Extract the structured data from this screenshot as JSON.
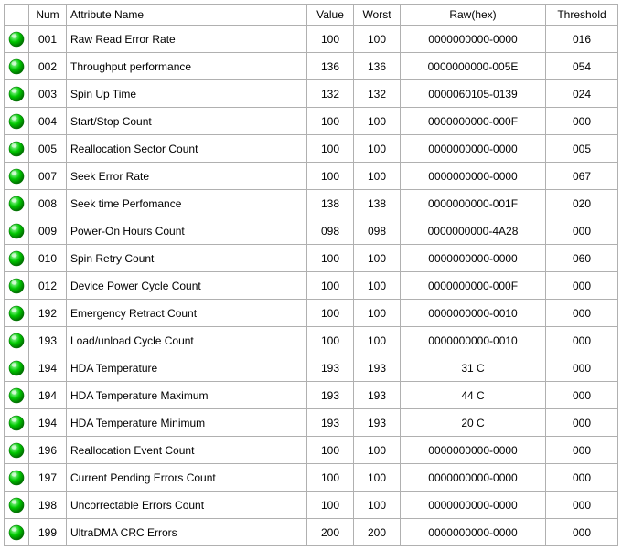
{
  "table": {
    "columns": {
      "status": "",
      "num": "Num",
      "name": "Attribute Name",
      "value": "Value",
      "worst": "Worst",
      "raw": "Raw(hex)",
      "threshold": "Threshold"
    },
    "status_colors": {
      "good": "#00c800",
      "good_highlight": "#a8ffb0",
      "good_edge": "#007000"
    },
    "border_color": "#b0b0b0",
    "font_family": "Tahoma, Verdana, Arial, sans-serif",
    "font_size": 12,
    "rows": [
      {
        "status": "good",
        "num": "001",
        "name": "Raw Read Error Rate",
        "value": "100",
        "worst": "100",
        "raw": "0000000000-0000",
        "threshold": "016"
      },
      {
        "status": "good",
        "num": "002",
        "name": "Throughput performance",
        "value": "136",
        "worst": "136",
        "raw": "0000000000-005E",
        "threshold": "054"
      },
      {
        "status": "good",
        "num": "003",
        "name": "Spin Up Time",
        "value": "132",
        "worst": "132",
        "raw": "0000060105-0139",
        "threshold": "024"
      },
      {
        "status": "good",
        "num": "004",
        "name": "Start/Stop Count",
        "value": "100",
        "worst": "100",
        "raw": "0000000000-000F",
        "threshold": "000"
      },
      {
        "status": "good",
        "num": "005",
        "name": "Reallocation Sector Count",
        "value": "100",
        "worst": "100",
        "raw": "0000000000-0000",
        "threshold": "005"
      },
      {
        "status": "good",
        "num": "007",
        "name": "Seek Error Rate",
        "value": "100",
        "worst": "100",
        "raw": "0000000000-0000",
        "threshold": "067"
      },
      {
        "status": "good",
        "num": "008",
        "name": "Seek time Perfomance",
        "value": "138",
        "worst": "138",
        "raw": "0000000000-001F",
        "threshold": "020"
      },
      {
        "status": "good",
        "num": "009",
        "name": "Power-On Hours Count",
        "value": "098",
        "worst": "098",
        "raw": "0000000000-4A28",
        "threshold": "000"
      },
      {
        "status": "good",
        "num": "010",
        "name": "Spin Retry Count",
        "value": "100",
        "worst": "100",
        "raw": "0000000000-0000",
        "threshold": "060"
      },
      {
        "status": "good",
        "num": "012",
        "name": "Device Power Cycle Count",
        "value": "100",
        "worst": "100",
        "raw": "0000000000-000F",
        "threshold": "000"
      },
      {
        "status": "good",
        "num": "192",
        "name": "Emergency Retract Count",
        "value": "100",
        "worst": "100",
        "raw": "0000000000-0010",
        "threshold": "000"
      },
      {
        "status": "good",
        "num": "193",
        "name": "Load/unload Cycle Count",
        "value": "100",
        "worst": "100",
        "raw": "0000000000-0010",
        "threshold": "000"
      },
      {
        "status": "good",
        "num": "194",
        "name": "HDA Temperature",
        "value": "193",
        "worst": "193",
        "raw": "31 C",
        "threshold": "000"
      },
      {
        "status": "good",
        "num": "194",
        "name": "HDA Temperature Maximum",
        "value": "193",
        "worst": "193",
        "raw": "44 C",
        "threshold": "000"
      },
      {
        "status": "good",
        "num": "194",
        "name": "HDA Temperature Minimum",
        "value": "193",
        "worst": "193",
        "raw": "20 C",
        "threshold": "000"
      },
      {
        "status": "good",
        "num": "196",
        "name": "Reallocation Event Count",
        "value": "100",
        "worst": "100",
        "raw": "0000000000-0000",
        "threshold": "000"
      },
      {
        "status": "good",
        "num": "197",
        "name": "Current Pending Errors Count",
        "value": "100",
        "worst": "100",
        "raw": "0000000000-0000",
        "threshold": "000"
      },
      {
        "status": "good",
        "num": "198",
        "name": "Uncorrectable Errors Count",
        "value": "100",
        "worst": "100",
        "raw": "0000000000-0000",
        "threshold": "000"
      },
      {
        "status": "good",
        "num": "199",
        "name": "UltraDMA CRC Errors",
        "value": "200",
        "worst": "200",
        "raw": "0000000000-0000",
        "threshold": "000"
      }
    ]
  }
}
